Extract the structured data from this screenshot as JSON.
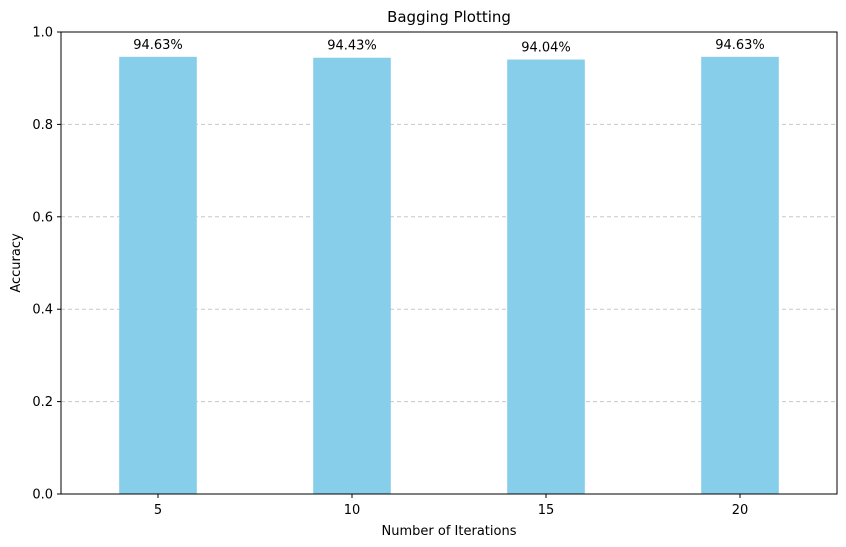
{
  "chart_data": {
    "type": "bar",
    "title": "Bagging Plotting",
    "xlabel": "Number of Iterations",
    "ylabel": "Accuracy",
    "categories": [
      "5",
      "10",
      "15",
      "20"
    ],
    "values": [
      0.9463,
      0.9443,
      0.9404,
      0.9463
    ],
    "data_labels": [
      "94.63%",
      "94.43%",
      "94.04%",
      "94.63%"
    ],
    "ylim": [
      0,
      1.0
    ],
    "yticks": [
      0.0,
      0.2,
      0.4,
      0.6,
      0.8,
      1.0
    ],
    "ytick_labels": [
      "0.0",
      "0.2",
      "0.4",
      "0.6",
      "0.8",
      "1.0"
    ],
    "grid": "y-dashed",
    "bar_color": "#87ceeb",
    "grid_color": "#c8c8c8",
    "legend": "none"
  }
}
